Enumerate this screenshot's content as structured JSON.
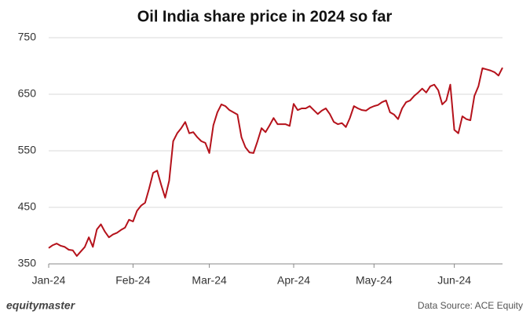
{
  "chart_data": {
    "type": "line",
    "title": "Oil India share price in 2024 so far",
    "categories": [
      "Jan-24",
      null,
      null,
      null,
      null,
      null,
      null,
      null,
      null,
      null,
      null,
      null,
      null,
      null,
      null,
      null,
      null,
      null,
      null,
      null,
      null,
      "Feb-24",
      null,
      null,
      null,
      null,
      null,
      null,
      null,
      null,
      null,
      null,
      null,
      null,
      null,
      null,
      null,
      null,
      null,
      null,
      "Mar-24",
      null,
      null,
      null,
      null,
      null,
      null,
      null,
      null,
      null,
      null,
      null,
      null,
      null,
      null,
      null,
      null,
      null,
      null,
      null,
      null,
      "Apr-24",
      null,
      null,
      null,
      null,
      null,
      null,
      null,
      null,
      null,
      null,
      null,
      null,
      null,
      null,
      null,
      null,
      null,
      null,
      null,
      "May-24",
      null,
      null,
      null,
      null,
      null,
      null,
      null,
      null,
      null,
      null,
      null,
      null,
      null,
      null,
      null,
      null,
      null,
      null,
      null,
      "Jun-24",
      null,
      null,
      null,
      null,
      null,
      null,
      null,
      null,
      null,
      null,
      null,
      null
    ],
    "values": [
      378,
      383,
      386,
      382,
      380,
      375,
      374,
      364,
      372,
      380,
      397,
      380,
      411,
      420,
      407,
      397,
      402,
      405,
      410,
      414,
      428,
      425,
      444,
      453,
      458,
      483,
      511,
      515,
      490,
      467,
      497,
      567,
      581,
      590,
      601,
      581,
      583,
      574,
      567,
      564,
      546,
      595,
      618,
      632,
      629,
      622,
      618,
      614,
      574,
      556,
      547,
      546,
      567,
      590,
      583,
      595,
      608,
      597,
      597,
      597,
      594,
      633,
      622,
      625,
      625,
      629,
      622,
      615,
      621,
      625,
      615,
      601,
      597,
      599,
      592,
      608,
      629,
      625,
      622,
      621,
      626,
      629,
      631,
      636,
      639,
      618,
      614,
      606,
      625,
      636,
      639,
      647,
      653,
      660,
      653,
      664,
      667,
      657,
      632,
      639,
      667,
      587,
      581,
      611,
      606,
      604,
      647,
      664,
      696,
      694,
      692,
      689,
      683,
      697
    ],
    "color": "#b5121b",
    "ylim": [
      350,
      750
    ],
    "yticks": [
      350,
      450,
      550,
      650,
      750
    ],
    "grid": true
  },
  "brand": "equitymaster",
  "source": "Data Source: ACE Equity"
}
